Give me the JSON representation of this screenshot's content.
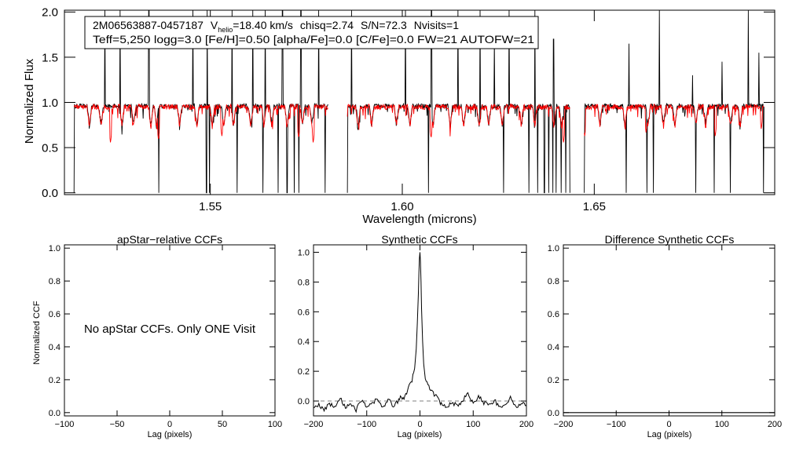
{
  "figure": {
    "star_id": "2M06563887-0457187",
    "vhelio_label": "V",
    "vhelio_sub": "helio",
    "vhelio_value": "=18.40 km/s",
    "chisq": "chisq=2.74",
    "snr": "S/N=72.3",
    "nvisits": "Nvisits=1",
    "params_line": "Teff=5,250 logg=3.0 [Fe/H]=0.50 [alpha/Fe]=0.0 [C/Fe]=0.0 FW=21 AUTOFW=21",
    "no_ccf_message": "No apStar CCFs.  Only ONE Visit"
  },
  "colors": {
    "observed": "#000000",
    "model": "#ff0000",
    "axis": "#000000",
    "zero_line": "#808080"
  },
  "chart_data": [
    {
      "id": "spectrum",
      "type": "line",
      "title": "",
      "xlabel": "Wavelength (microns)",
      "ylabel": "Normalized Flux",
      "xlim": [
        1.512,
        1.697
      ],
      "ylim": [
        -0.02,
        2.02
      ],
      "xticks": [
        1.55,
        1.6,
        1.65
      ],
      "xtick_labels": [
        "1.55",
        "1.60",
        "1.65"
      ],
      "yticks": [
        0.0,
        0.5,
        1.0,
        1.5,
        2.0
      ],
      "ytick_labels": [
        "0.0",
        "0.5",
        "1.0",
        "1.5",
        "2.0"
      ],
      "chip_ranges": [
        [
          1.5145,
          1.5807
        ],
        [
          1.5857,
          1.6437
        ],
        [
          1.6474,
          1.6943
        ]
      ],
      "series": [
        {
          "role": "observed",
          "color": "#000000",
          "level": 0.96,
          "noise": 0.025,
          "absorption_lines": [
            1.5185,
            1.5215,
            1.527,
            1.53,
            1.5345,
            1.536,
            1.542,
            1.5465,
            1.5505,
            1.5535,
            1.556,
            1.5605,
            1.564,
            1.566,
            1.57,
            1.574,
            1.5765,
            1.5885,
            1.592,
            1.5985,
            1.602,
            1.608,
            1.6125,
            1.616,
            1.62,
            1.6225,
            1.626,
            1.631,
            1.6345,
            1.6395,
            1.6415,
            1.6515,
            1.658,
            1.664,
            1.668,
            1.671,
            1.6765,
            1.679,
            1.6855,
            1.688
          ],
          "spikes": [
            [
              1.5225,
              2.02
            ],
            [
              1.5265,
              2.02
            ],
            [
              1.534,
              2.02
            ],
            [
              1.5455,
              2.02
            ],
            [
              1.5492,
              2.02
            ],
            [
              1.5557,
              2.02
            ],
            [
              1.5611,
              2.02
            ],
            [
              1.5643,
              2.02
            ],
            [
              1.5688,
              2.02
            ],
            [
              1.5736,
              2.02
            ],
            [
              1.5782,
              2.02
            ],
            [
              1.5868,
              2.02
            ],
            [
              1.6008,
              2.02
            ],
            [
              1.6076,
              2.02
            ],
            [
              1.6145,
              2.02
            ],
            [
              1.6203,
              2.02
            ],
            [
              1.624,
              1.7
            ],
            [
              1.6278,
              2.02
            ],
            [
              1.6345,
              2.02
            ],
            [
              1.6394,
              1.7
            ],
            [
              1.659,
              1.65
            ],
            [
              1.667,
              2.02
            ],
            [
              1.6756,
              1.3
            ],
            [
              1.6833,
              1.45
            ],
            [
              1.6901,
              2.02
            ],
            [
              1.6929,
              1.55
            ]
          ],
          "drops": [
            [
              1.5145,
              0.0
            ],
            [
              1.5366,
              0.0
            ],
            [
              1.549,
              0.0
            ],
            [
              1.5498,
              0.0
            ],
            [
              1.557,
              0.0
            ],
            [
              1.5637,
              0.0
            ],
            [
              1.5677,
              0.0
            ],
            [
              1.57,
              0.0
            ],
            [
              1.5719,
              0.0
            ],
            [
              1.5731,
              0.0
            ],
            [
              1.5799,
              0.0
            ],
            [
              1.5857,
              0.0
            ],
            [
              1.6068,
              0.0
            ],
            [
              1.6264,
              0.0
            ],
            [
              1.633,
              0.0
            ],
            [
              1.6353,
              0.0
            ],
            [
              1.637,
              0.0
            ],
            [
              1.6381,
              0.0
            ],
            [
              1.6392,
              0.0
            ],
            [
              1.6401,
              0.0
            ],
            [
              1.6414,
              0.0
            ],
            [
              1.6426,
              0.0
            ],
            [
              1.6437,
              0.0
            ],
            [
              1.6458,
              0.0
            ],
            [
              1.6474,
              0.0
            ],
            [
              1.6583,
              0.0
            ],
            [
              1.6637,
              0.0
            ],
            [
              1.6654,
              0.0
            ],
            [
              1.6764,
              0.0
            ],
            [
              1.6812,
              0.0
            ],
            [
              1.6854,
              0.0
            ],
            [
              1.6941,
              0.0
            ]
          ]
        },
        {
          "role": "model",
          "color": "#ff0000",
          "level": 0.95,
          "noise": 0.03,
          "absorption_lines": [
            1.5185,
            1.5215,
            1.527,
            1.53,
            1.5345,
            1.536,
            1.542,
            1.5465,
            1.5505,
            1.5535,
            1.556,
            1.5605,
            1.564,
            1.566,
            1.57,
            1.574,
            1.5765,
            1.5885,
            1.592,
            1.5985,
            1.602,
            1.608,
            1.6125,
            1.616,
            1.62,
            1.6225,
            1.626,
            1.631,
            1.6345,
            1.6395,
            1.6415,
            1.6515,
            1.658,
            1.664,
            1.668,
            1.671,
            1.6765,
            1.679,
            1.6855,
            1.688
          ],
          "deep_lines": [
            [
              1.524,
              0.55
            ],
            [
              1.5365,
              0.58
            ],
            [
              1.553,
              0.62
            ],
            [
              1.573,
              0.6
            ],
            [
              1.5768,
              0.55
            ],
            [
              1.6075,
              0.6
            ],
            [
              1.642,
              0.55
            ],
            [
              1.6475,
              0.62
            ],
            [
              1.6635,
              0.66
            ],
            [
              1.6815,
              0.62
            ],
            [
              1.6935,
              0.7
            ]
          ]
        }
      ]
    },
    {
      "id": "apstar_ccf",
      "type": "line",
      "title": "apStar−relative CCFs",
      "xlabel": "Lag (pixels)",
      "ylabel": "Normalized CCF",
      "xlim": [
        -100,
        100
      ],
      "ylim": [
        -0.02,
        1.02
      ],
      "xticks": [
        -100,
        -50,
        0,
        50,
        100
      ],
      "xtick_labels": [
        "−100",
        "−50",
        "0",
        "50",
        "100"
      ],
      "yticks": [
        0.0,
        0.2,
        0.4,
        0.6,
        0.8,
        1.0
      ],
      "ytick_labels": [
        "0.0",
        "0.2",
        "0.4",
        "0.6",
        "0.8",
        "1.0"
      ],
      "series": []
    },
    {
      "id": "synthetic_ccf",
      "type": "line",
      "title": "Synthetic CCFs",
      "xlabel": "Lag (pixels)",
      "ylabel": "",
      "xlim": [
        -200,
        200
      ],
      "ylim": [
        -0.1,
        1.05
      ],
      "xticks": [
        -200,
        -100,
        0,
        100,
        200
      ],
      "xtick_labels": [
        "−200",
        "−100",
        "0",
        "100",
        "200"
      ],
      "yticks": [
        0.0,
        0.2,
        0.4,
        0.6,
        0.8,
        1.0
      ],
      "ytick_labels": [
        "0.0",
        "0.2",
        "0.4",
        "0.6",
        "0.8",
        "1.0"
      ],
      "zero_line": 0.0,
      "series": [
        {
          "color": "#000000",
          "x": [
            -200,
            -190,
            -180,
            -170,
            -160,
            -150,
            -140,
            -130,
            -120,
            -110,
            -100,
            -90,
            -80,
            -70,
            -60,
            -50,
            -40,
            -35,
            -30,
            -25,
            -20,
            -15,
            -10,
            -7,
            -5,
            -3,
            -2,
            -1,
            0,
            1,
            2,
            3,
            5,
            7,
            10,
            15,
            20,
            25,
            30,
            35,
            40,
            50,
            60,
            70,
            80,
            90,
            100,
            110,
            120,
            130,
            140,
            150,
            160,
            170,
            180,
            190,
            200
          ],
          "y": [
            -0.05,
            -0.03,
            -0.06,
            -0.02,
            -0.04,
            0.03,
            -0.05,
            -0.02,
            -0.06,
            0.01,
            -0.04,
            -0.02,
            0.02,
            -0.05,
            0.01,
            -0.03,
            0.0,
            0.03,
            0.02,
            0.05,
            0.1,
            0.14,
            0.22,
            0.35,
            0.52,
            0.72,
            0.86,
            0.96,
            1.0,
            0.93,
            0.8,
            0.62,
            0.4,
            0.25,
            0.15,
            0.1,
            0.08,
            0.05,
            0.03,
            0.01,
            -0.02,
            -0.04,
            -0.01,
            -0.03,
            0.0,
            0.05,
            -0.02,
            0.03,
            -0.01,
            -0.03,
            0.01,
            -0.05,
            -0.02,
            0.02,
            -0.04,
            -0.01,
            -0.03
          ]
        }
      ]
    },
    {
      "id": "difference_ccf",
      "type": "line",
      "title": "Difference Synthetic CCFs",
      "xlabel": "Lag (pixels)",
      "ylabel": "",
      "xlim": [
        -200,
        200
      ],
      "ylim": [
        -0.02,
        1.02
      ],
      "xticks": [
        -200,
        -100,
        0,
        100,
        200
      ],
      "xtick_labels": [
        "−200",
        "−100",
        "0",
        "100",
        "200"
      ],
      "yticks": [
        0.0,
        0.2,
        0.4,
        0.6,
        0.8,
        1.0
      ],
      "ytick_labels": [
        "0.0",
        "0.2",
        "0.4",
        "0.6",
        "0.8",
        "1.0"
      ],
      "series": [
        {
          "color": "#000000",
          "x": [
            -200,
            200
          ],
          "y": [
            0.0,
            0.0
          ]
        }
      ]
    }
  ]
}
